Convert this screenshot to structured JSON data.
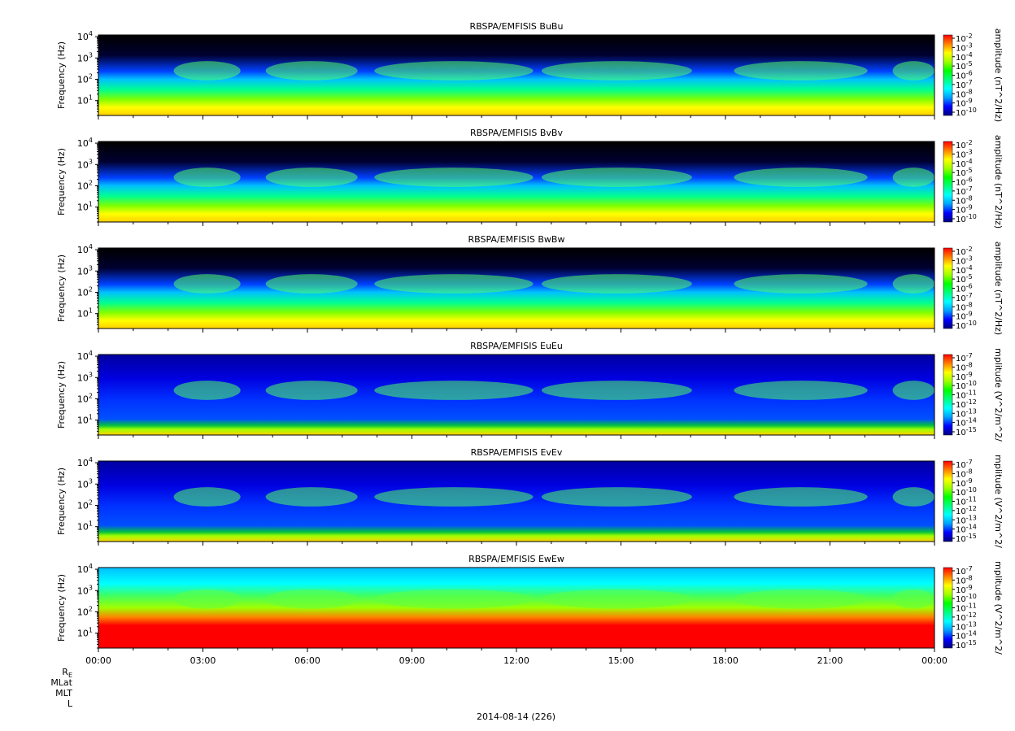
{
  "chart_data": [
    {
      "type": "heatmap",
      "title": "RBSPA/EMFISIS  BuBu",
      "ylabel": "Frequency (Hz)",
      "y_scale": "log",
      "ylim": [
        2,
        12000
      ],
      "y_ticks": [
        {
          "exp": "1"
        },
        {
          "exp": "2"
        },
        {
          "exp": "3"
        },
        {
          "exp": "4"
        }
      ],
      "colorbar_label": "amplitude (nT^2/Hz)",
      "colorbar_ticks": [
        "-2",
        "-3",
        "-4",
        "-5",
        "-6",
        "-7",
        "-8",
        "-9",
        "-10"
      ],
      "colorbar_range": [
        -10,
        -2
      ],
      "kind": "B"
    },
    {
      "type": "heatmap",
      "title": "RBSPA/EMFISIS  BvBv",
      "ylabel": "Frequency (Hz)",
      "y_scale": "log",
      "ylim": [
        2,
        12000
      ],
      "y_ticks": [
        {
          "exp": "1"
        },
        {
          "exp": "2"
        },
        {
          "exp": "3"
        },
        {
          "exp": "4"
        }
      ],
      "colorbar_label": "amplitude (nT^2/Hz)",
      "colorbar_ticks": [
        "-2",
        "-3",
        "-4",
        "-5",
        "-6",
        "-7",
        "-8",
        "-9",
        "-10"
      ],
      "colorbar_range": [
        -10,
        -2
      ],
      "kind": "B"
    },
    {
      "type": "heatmap",
      "title": "RBSPA/EMFISIS  BwBw",
      "ylabel": "Frequency (Hz)",
      "y_scale": "log",
      "ylim": [
        2,
        12000
      ],
      "y_ticks": [
        {
          "exp": "1"
        },
        {
          "exp": "2"
        },
        {
          "exp": "3"
        },
        {
          "exp": "4"
        }
      ],
      "colorbar_label": "amplitude (nT^2/Hz)",
      "colorbar_ticks": [
        "-2",
        "-3",
        "-4",
        "-5",
        "-6",
        "-7",
        "-8",
        "-9",
        "-10"
      ],
      "colorbar_range": [
        -10,
        -2
      ],
      "kind": "B"
    },
    {
      "type": "heatmap",
      "title": "RBSPA/EMFISIS  EuEu",
      "ylabel": "Frequency (Hz)",
      "y_scale": "log",
      "ylim": [
        2,
        12000
      ],
      "y_ticks": [
        {
          "exp": "1"
        },
        {
          "exp": "2"
        },
        {
          "exp": "3"
        },
        {
          "exp": "4"
        }
      ],
      "colorbar_label": "mplitude (V^2/m^2/",
      "colorbar_ticks": [
        "-7",
        "-8",
        "-9",
        "-10",
        "-11",
        "-12",
        "-13",
        "-14",
        "-15"
      ],
      "colorbar_range": [
        -15,
        -7
      ],
      "kind": "E"
    },
    {
      "type": "heatmap",
      "title": "RBSPA/EMFISIS  EvEv",
      "ylabel": "Frequency (Hz)",
      "y_scale": "log",
      "ylim": [
        2,
        12000
      ],
      "y_ticks": [
        {
          "exp": "1"
        },
        {
          "exp": "2"
        },
        {
          "exp": "3"
        },
        {
          "exp": "4"
        }
      ],
      "colorbar_label": "mplitude (V^2/m^2/",
      "colorbar_ticks": [
        "-7",
        "-8",
        "-9",
        "-10",
        "-11",
        "-12",
        "-13",
        "-14",
        "-15"
      ],
      "colorbar_range": [
        -15,
        -7
      ],
      "kind": "E"
    },
    {
      "type": "heatmap",
      "title": "RBSPA/EMFISIS  EwEw",
      "ylabel": "Frequency (Hz)",
      "y_scale": "log",
      "ylim": [
        2,
        12000
      ],
      "y_ticks": [
        {
          "exp": "1"
        },
        {
          "exp": "2"
        },
        {
          "exp": "3"
        },
        {
          "exp": "4"
        }
      ],
      "colorbar_label": "mplitude (V^2/m^2/",
      "colorbar_ticks": [
        "-7",
        "-8",
        "-9",
        "-10",
        "-11",
        "-12",
        "-13",
        "-14",
        "-15"
      ],
      "colorbar_range": [
        -15,
        -7
      ],
      "kind": "Ew"
    }
  ],
  "x_axis": {
    "tick_labels": [
      "00:00",
      "03:00",
      "06:00",
      "09:00",
      "12:00",
      "15:00",
      "18:00",
      "21:00",
      "00:00"
    ],
    "range_hours": [
      0,
      24
    ]
  },
  "tick_base": "10",
  "ephemeris_labels": [
    "R",
    "MLat",
    "MLT",
    "L"
  ],
  "ephemeris_subscript": "E",
  "date_label": "2014-08-14 (226)",
  "colormap": [
    "#000080",
    "#0000ff",
    "#00a0ff",
    "#00ffff",
    "#00ff80",
    "#00ff00",
    "#a0ff00",
    "#ffff00",
    "#ff8000",
    "#ff0000"
  ]
}
